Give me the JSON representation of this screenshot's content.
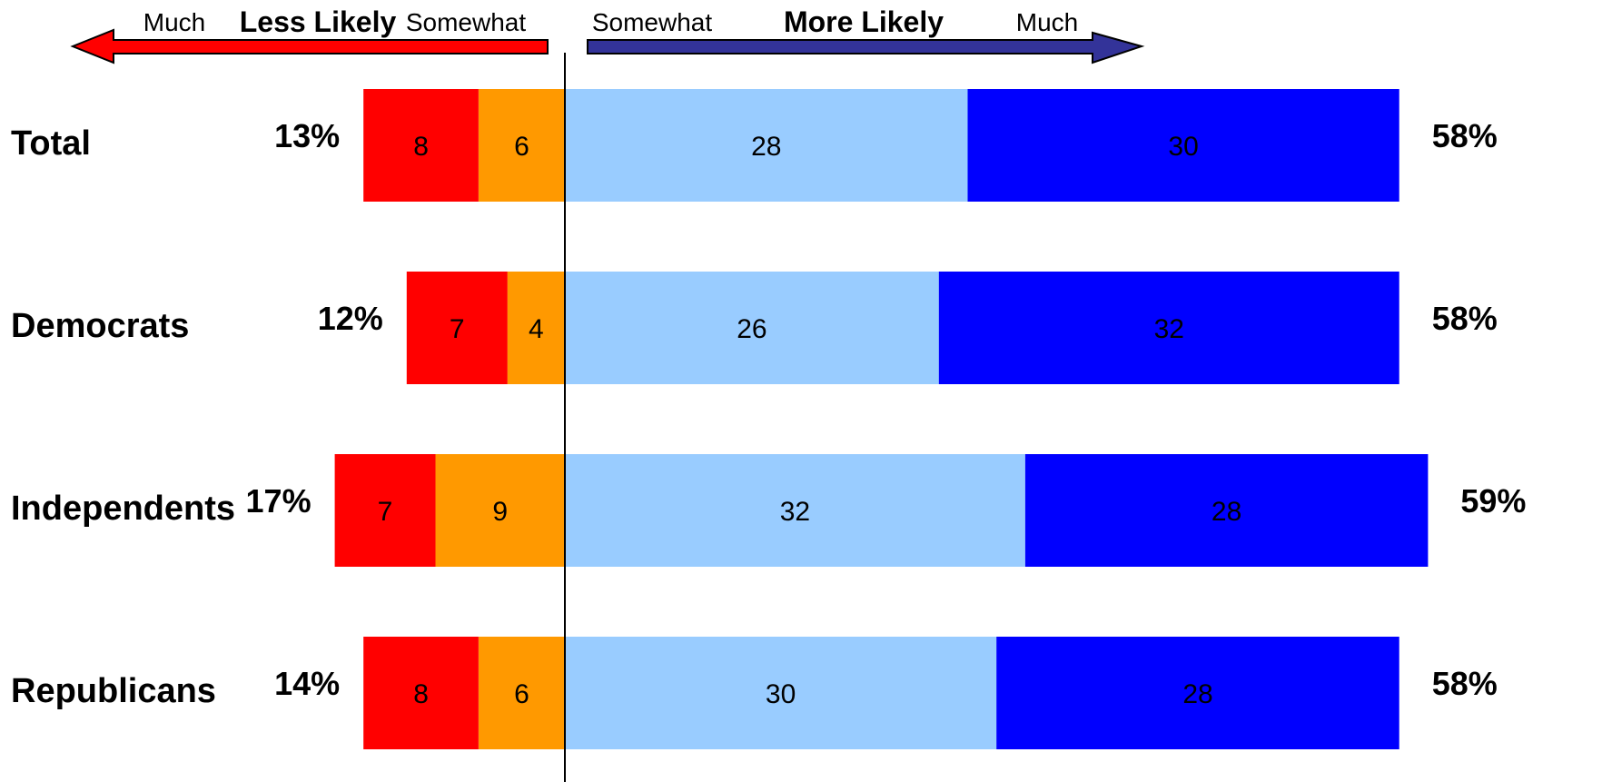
{
  "chart_data": {
    "type": "bar",
    "orientation": "horizontal",
    "stacked": "diverging",
    "categories": [
      "Total",
      "Democrats",
      "Independents",
      "Republicans"
    ],
    "series": [
      {
        "name": "Much",
        "side": "negative",
        "color": "#FF0000",
        "values": [
          8,
          7,
          7,
          8
        ]
      },
      {
        "name": "Somewhat",
        "side": "negative",
        "color": "#FF9900",
        "values": [
          6,
          4,
          9,
          6
        ]
      },
      {
        "name": "Somewhat",
        "side": "positive",
        "color": "#99CCFF",
        "values": [
          28,
          26,
          32,
          30
        ]
      },
      {
        "name": "Much",
        "side": "positive",
        "color": "#0000FF",
        "values": [
          30,
          32,
          28,
          28
        ]
      }
    ],
    "negative_totals": [
      "13%",
      "12%",
      "17%",
      "14%"
    ],
    "positive_totals": [
      "58%",
      "58%",
      "59%",
      "58%"
    ],
    "legend": {
      "negative": {
        "title": "Less Likely",
        "near": "Somewhat",
        "far": "Much",
        "color": "#FF0000"
      },
      "positive": {
        "title": "More Likely",
        "near": "Somewhat",
        "far": "Much",
        "color": "#333399"
      }
    },
    "grid": false,
    "legend_placement": "top"
  }
}
